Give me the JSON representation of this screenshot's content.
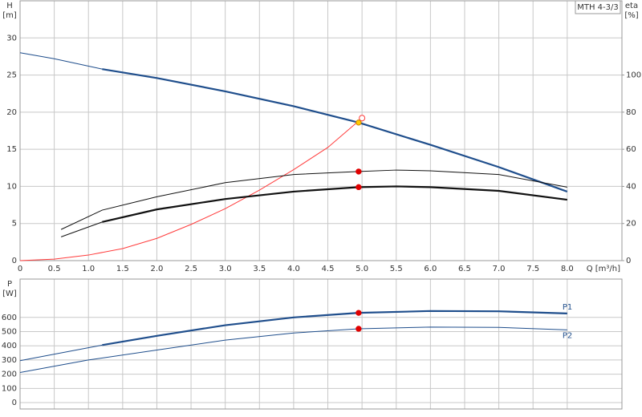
{
  "chart_data": [
    {
      "type": "line",
      "title": "MTH 4-3/3",
      "y_label": "H",
      "y_unit": "[m]",
      "y2_label": "eta",
      "y2_unit": "[%]",
      "x_label": "Q [m³/h]",
      "xlim": [
        0,
        8.8
      ],
      "ylim": [
        0,
        35
      ],
      "y2lim": [
        0,
        140
      ],
      "grid": true,
      "show_xtick_labels": true,
      "xticks": [
        0,
        0.5,
        {
          "value": 1,
          "label": "1.0"
        },
        1.5,
        {
          "value": 2,
          "label": "2.0"
        },
        2.5,
        {
          "value": 3,
          "label": "3.0"
        },
        3.5,
        {
          "value": 4,
          "label": "4.0"
        },
        4.5,
        {
          "value": 5,
          "label": "5.0"
        },
        5.5,
        {
          "value": 6,
          "label": "6.0"
        },
        6.5,
        {
          "value": 7,
          "label": "7.0"
        },
        7.5,
        {
          "value": 8,
          "label": "8.0"
        }
      ],
      "yticks": [
        0,
        5,
        10,
        15,
        20,
        25,
        30
      ],
      "y2ticks": [
        0,
        20,
        40,
        60,
        80,
        100
      ],
      "series": [
        {
          "color": "#1f4e8c",
          "width": 1,
          "x": [
            0,
            0.5,
            1.2
          ],
          "values": [
            28.0,
            27.2,
            25.8
          ]
        },
        {
          "color": "#1f4e8c",
          "width": 2.2,
          "x": [
            1.2,
            2,
            3,
            4,
            4.95,
            6,
            7,
            8
          ],
          "values": [
            25.8,
            24.6,
            22.8,
            20.8,
            18.6,
            15.6,
            12.6,
            9.3
          ]
        },
        {
          "color": "#ff3b3b",
          "width": 1,
          "axis": "y2",
          "x": [
            0,
            0.5,
            1,
            1.5,
            2,
            2.5,
            3,
            3.5,
            4,
            4.5,
            5
          ],
          "values": [
            0,
            0.8,
            3,
            6.5,
            12,
            19.5,
            28,
            38,
            49,
            61,
            76.8
          ]
        },
        {
          "color": "#111111",
          "width": 1,
          "x": [
            0.6,
            1.2,
            2,
            3,
            4,
            4.95,
            5.5,
            6,
            7,
            8
          ],
          "values": [
            4.2,
            6.8,
            8.6,
            10.5,
            11.6,
            12.0,
            12.2,
            12.1,
            11.6,
            9.9
          ]
        },
        {
          "color": "#111111",
          "width": 1,
          "x": [
            0.6,
            1.2
          ],
          "values": [
            3.2,
            5.2
          ]
        },
        {
          "color": "#111111",
          "width": 2.2,
          "x": [
            1.2,
            2,
            3,
            4,
            4.95,
            5.5,
            6,
            7,
            8
          ],
          "values": [
            5.2,
            6.9,
            8.3,
            9.3,
            9.9,
            10.0,
            9.9,
            9.4,
            8.2
          ]
        }
      ],
      "markers": [
        {
          "x": 5,
          "y": 76.8,
          "axis": "y2",
          "color": "#ff3b3b",
          "style": "hollow"
        },
        {
          "x": 4.95,
          "y": 18.6,
          "color": "#ffcc00",
          "style": "filled"
        },
        {
          "x": 4.95,
          "y": 12.0,
          "color": "#e00000",
          "style": "filled"
        },
        {
          "x": 4.95,
          "y": 9.9,
          "color": "#e00000",
          "style": "filled"
        }
      ]
    },
    {
      "type": "line",
      "y_label": "P",
      "y_unit": "[W]",
      "xlim": [
        0,
        8.8
      ],
      "ylim": [
        -45,
        870
      ],
      "grid": true,
      "show_xtick_labels": false,
      "xticks": [
        0,
        0.5,
        1,
        1.5,
        2,
        2.5,
        3,
        3.5,
        4,
        4.5,
        5,
        5.5,
        6,
        6.5,
        7,
        7.5,
        8
      ],
      "yticks": [
        0,
        100,
        200,
        300,
        400,
        500,
        600
      ],
      "series": [
        {
          "color": "#1f4e8c",
          "width": 1,
          "x": [
            0,
            1.2
          ],
          "values": [
            295,
            405
          ]
        },
        {
          "name": "P1",
          "color": "#1f4e8c",
          "width": 2.2,
          "x": [
            1.2,
            2,
            3,
            4,
            4.95,
            6,
            7,
            8
          ],
          "values": [
            405,
            470,
            545,
            600,
            632,
            645,
            643,
            628
          ]
        },
        {
          "name": "P2",
          "color": "#1f4e8c",
          "width": 1,
          "x": [
            0,
            1,
            2,
            3,
            4,
            4.95,
            6,
            7,
            8
          ],
          "values": [
            212,
            300,
            370,
            440,
            490,
            520,
            532,
            530,
            512
          ]
        }
      ],
      "markers": [
        {
          "x": 4.95,
          "y": 632,
          "color": "#e00000",
          "style": "filled"
        },
        {
          "x": 4.95,
          "y": 520,
          "color": "#e00000",
          "style": "filled"
        }
      ]
    }
  ]
}
